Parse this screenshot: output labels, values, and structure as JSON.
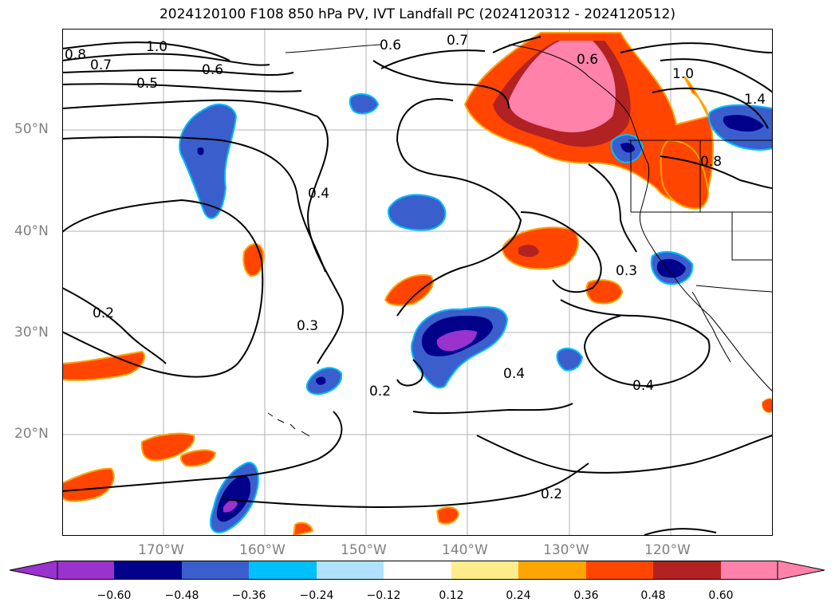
{
  "title": "2024120100 F108 850 hPa PV, IVT Landfall PC (2024120312 - 2024120512)",
  "map": {
    "projection": "plate-carree",
    "lon_range": [
      180,
      -110
    ],
    "lat_range": [
      10,
      60
    ],
    "lat_labels": [
      "50°N",
      "40°N",
      "30°N",
      "20°N"
    ],
    "lon_labels": [
      "170°W",
      "160°W",
      "150°W",
      "140°W",
      "130°W",
      "120°W"
    ],
    "grid": true,
    "contour_labels": [
      "1.0",
      "0.8",
      "0.7",
      "0.6",
      "0.5",
      "0.6",
      "0.7",
      "0.6",
      "1.0",
      "1.4",
      "0.8",
      "0.4",
      "0.3",
      "0.3",
      "0.2",
      "0.2",
      "0.4",
      "0.4",
      "0.2"
    ]
  },
  "colorbar": {
    "ticks": [
      "−0.60",
      "−0.48",
      "−0.36",
      "−0.24",
      "−0.12",
      "0.12",
      "0.24",
      "0.36",
      "0.48",
      "0.60"
    ],
    "colors": [
      "#9a32cd",
      "#00008b",
      "#3a5fcd",
      "#00bfff",
      "#b0e2ff",
      "#ffffff",
      "#ffec8b",
      "#ffa500",
      "#ff4500",
      "#b22222",
      "#ff82ab"
    ]
  }
}
